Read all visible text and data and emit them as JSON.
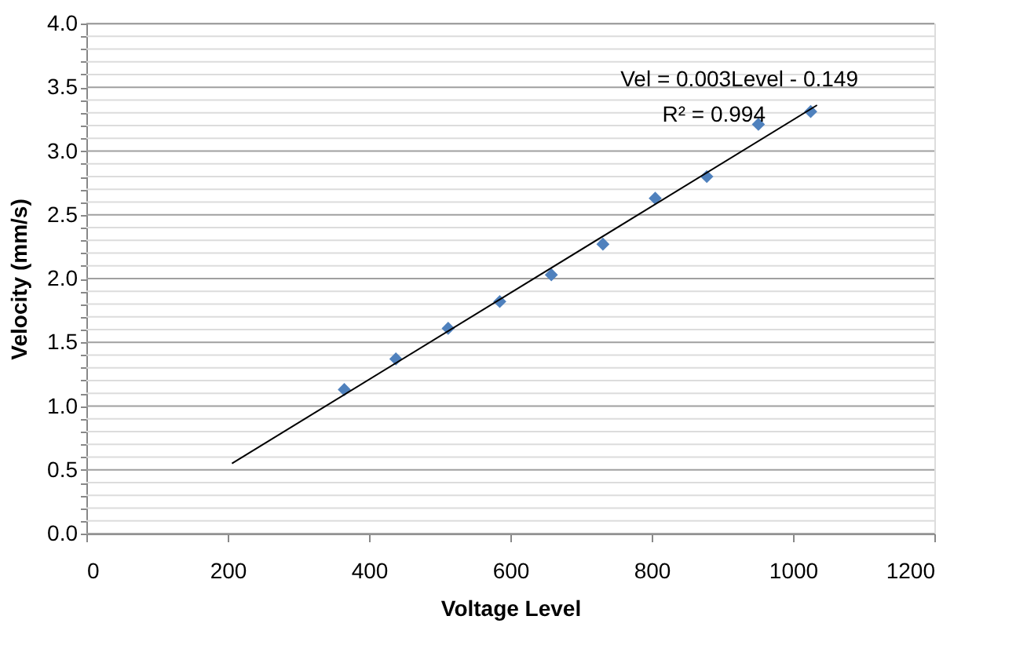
{
  "chart_data": {
    "type": "scatter",
    "xlabel": "Voltage Level",
    "ylabel": "Velocity (mm/s)",
    "series": [
      {
        "type": "scatter",
        "color": "#4f81bd",
        "marker": "diamond",
        "x": [
          365,
          438,
          512,
          585,
          658,
          731,
          805,
          878,
          951,
          1025
        ],
        "values": [
          1.13,
          1.37,
          1.61,
          1.82,
          2.03,
          2.27,
          2.63,
          2.8,
          3.21,
          3.31
        ]
      },
      {
        "type": "line",
        "color": "#000000",
        "line_style": "solid",
        "x": [
          206,
          1034
        ],
        "values": [
          0.55,
          3.36
        ]
      }
    ],
    "annotations": [
      "Vel = 0.003Level - 0.149",
      "R² = 0.994"
    ],
    "xlim": [
      0,
      1200
    ],
    "xticks": [
      0,
      200,
      400,
      600,
      800,
      1000,
      1200
    ],
    "ylim": [
      0,
      4.0
    ],
    "yticks": [
      {
        "value": 0,
        "label": "0.0"
      },
      {
        "value": 0.1,
        "label": null
      },
      {
        "value": 0.2,
        "label": null
      },
      {
        "value": 0.3,
        "label": null
      },
      {
        "value": 0.4,
        "label": null
      },
      {
        "value": 0.5,
        "label": "0.5"
      },
      {
        "value": 0.6,
        "label": null
      },
      {
        "value": 0.7,
        "label": null
      },
      {
        "value": 0.8,
        "label": null
      },
      {
        "value": 0.9,
        "label": null
      },
      {
        "value": 1.0,
        "label": "1.0"
      },
      {
        "value": 1.1,
        "label": null
      },
      {
        "value": 1.2,
        "label": null
      },
      {
        "value": 1.3,
        "label": null
      },
      {
        "value": 1.4,
        "label": null
      },
      {
        "value": 1.5,
        "label": "1.5"
      },
      {
        "value": 1.6,
        "label": null
      },
      {
        "value": 1.7,
        "label": null
      },
      {
        "value": 1.8,
        "label": null
      },
      {
        "value": 1.9,
        "label": null
      },
      {
        "value": 2.0,
        "label": "2.0"
      },
      {
        "value": 2.1,
        "label": null
      },
      {
        "value": 2.2,
        "label": null
      },
      {
        "value": 2.3,
        "label": null
      },
      {
        "value": 2.4,
        "label": null
      },
      {
        "value": 2.5,
        "label": "2.5"
      },
      {
        "value": 2.6,
        "label": null
      },
      {
        "value": 2.7,
        "label": null
      },
      {
        "value": 2.8,
        "label": null
      },
      {
        "value": 2.9,
        "label": null
      },
      {
        "value": 3.0,
        "label": "3.0"
      },
      {
        "value": 3.1,
        "label": null
      },
      {
        "value": 3.2,
        "label": null
      },
      {
        "value": 3.3,
        "label": null
      },
      {
        "value": 3.4,
        "label": null
      },
      {
        "value": 3.5,
        "label": "3.5"
      },
      {
        "value": 3.6,
        "label": null
      },
      {
        "value": 3.7,
        "label": null
      },
      {
        "value": 3.8,
        "label": null
      },
      {
        "value": 3.9,
        "label": null
      },
      {
        "value": 4.0,
        "label": "4.0"
      }
    ],
    "grid": "y",
    "legend": false
  }
}
